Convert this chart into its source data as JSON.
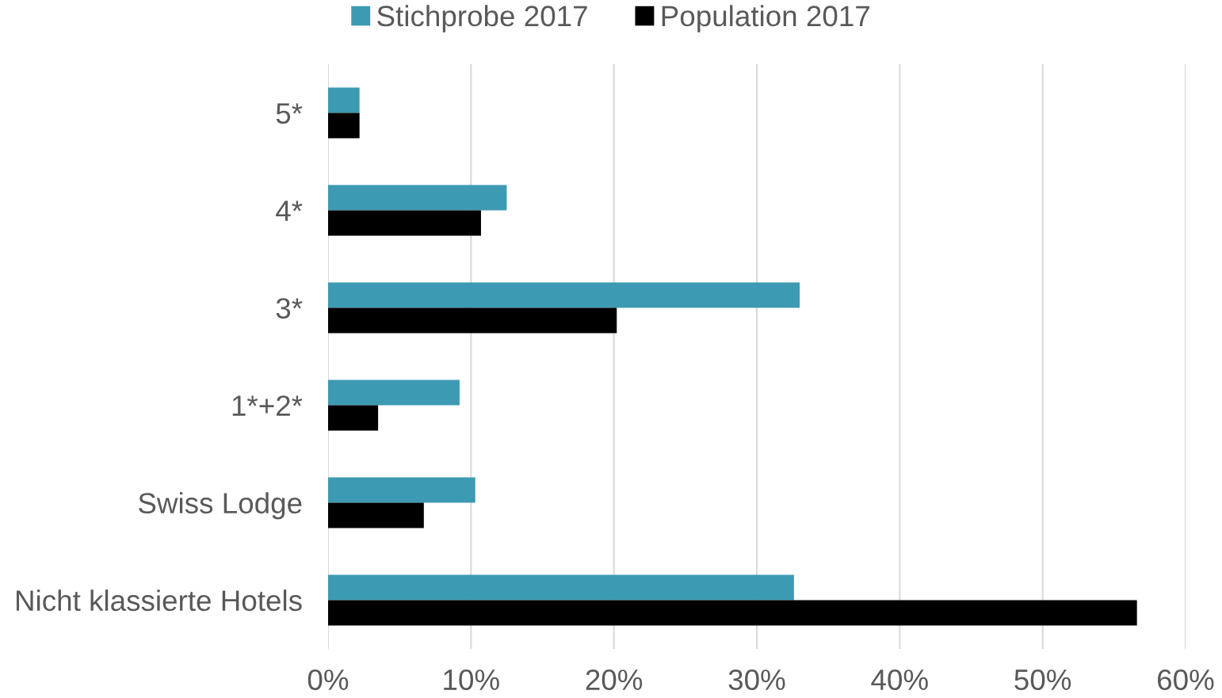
{
  "chart_data": {
    "type": "bar",
    "orientation": "horizontal",
    "categories": [
      "5*",
      "4*",
      "3*",
      "1*+2*",
      "Swiss Lodge",
      "Nicht klassierte Hotels"
    ],
    "series": [
      {
        "name": "Stichprobe 2017",
        "color": "#3d9ab3",
        "values": [
          2.2,
          12.5,
          33.0,
          9.2,
          10.3,
          32.6
        ]
      },
      {
        "name": "Population 2017",
        "color": "#000000",
        "values": [
          2.2,
          10.7,
          20.2,
          3.5,
          6.7,
          56.6
        ]
      }
    ],
    "xlim": [
      0,
      60
    ],
    "xticks": [
      {
        "value": 0,
        "label": "0%"
      },
      {
        "value": 10,
        "label": "10%"
      },
      {
        "value": 20,
        "label": "20%"
      },
      {
        "value": 30,
        "label": "30%"
      },
      {
        "value": 40,
        "label": "40%"
      },
      {
        "value": 50,
        "label": "50%"
      },
      {
        "value": 60,
        "label": "60%"
      }
    ],
    "grid": "x",
    "legend": "top"
  }
}
